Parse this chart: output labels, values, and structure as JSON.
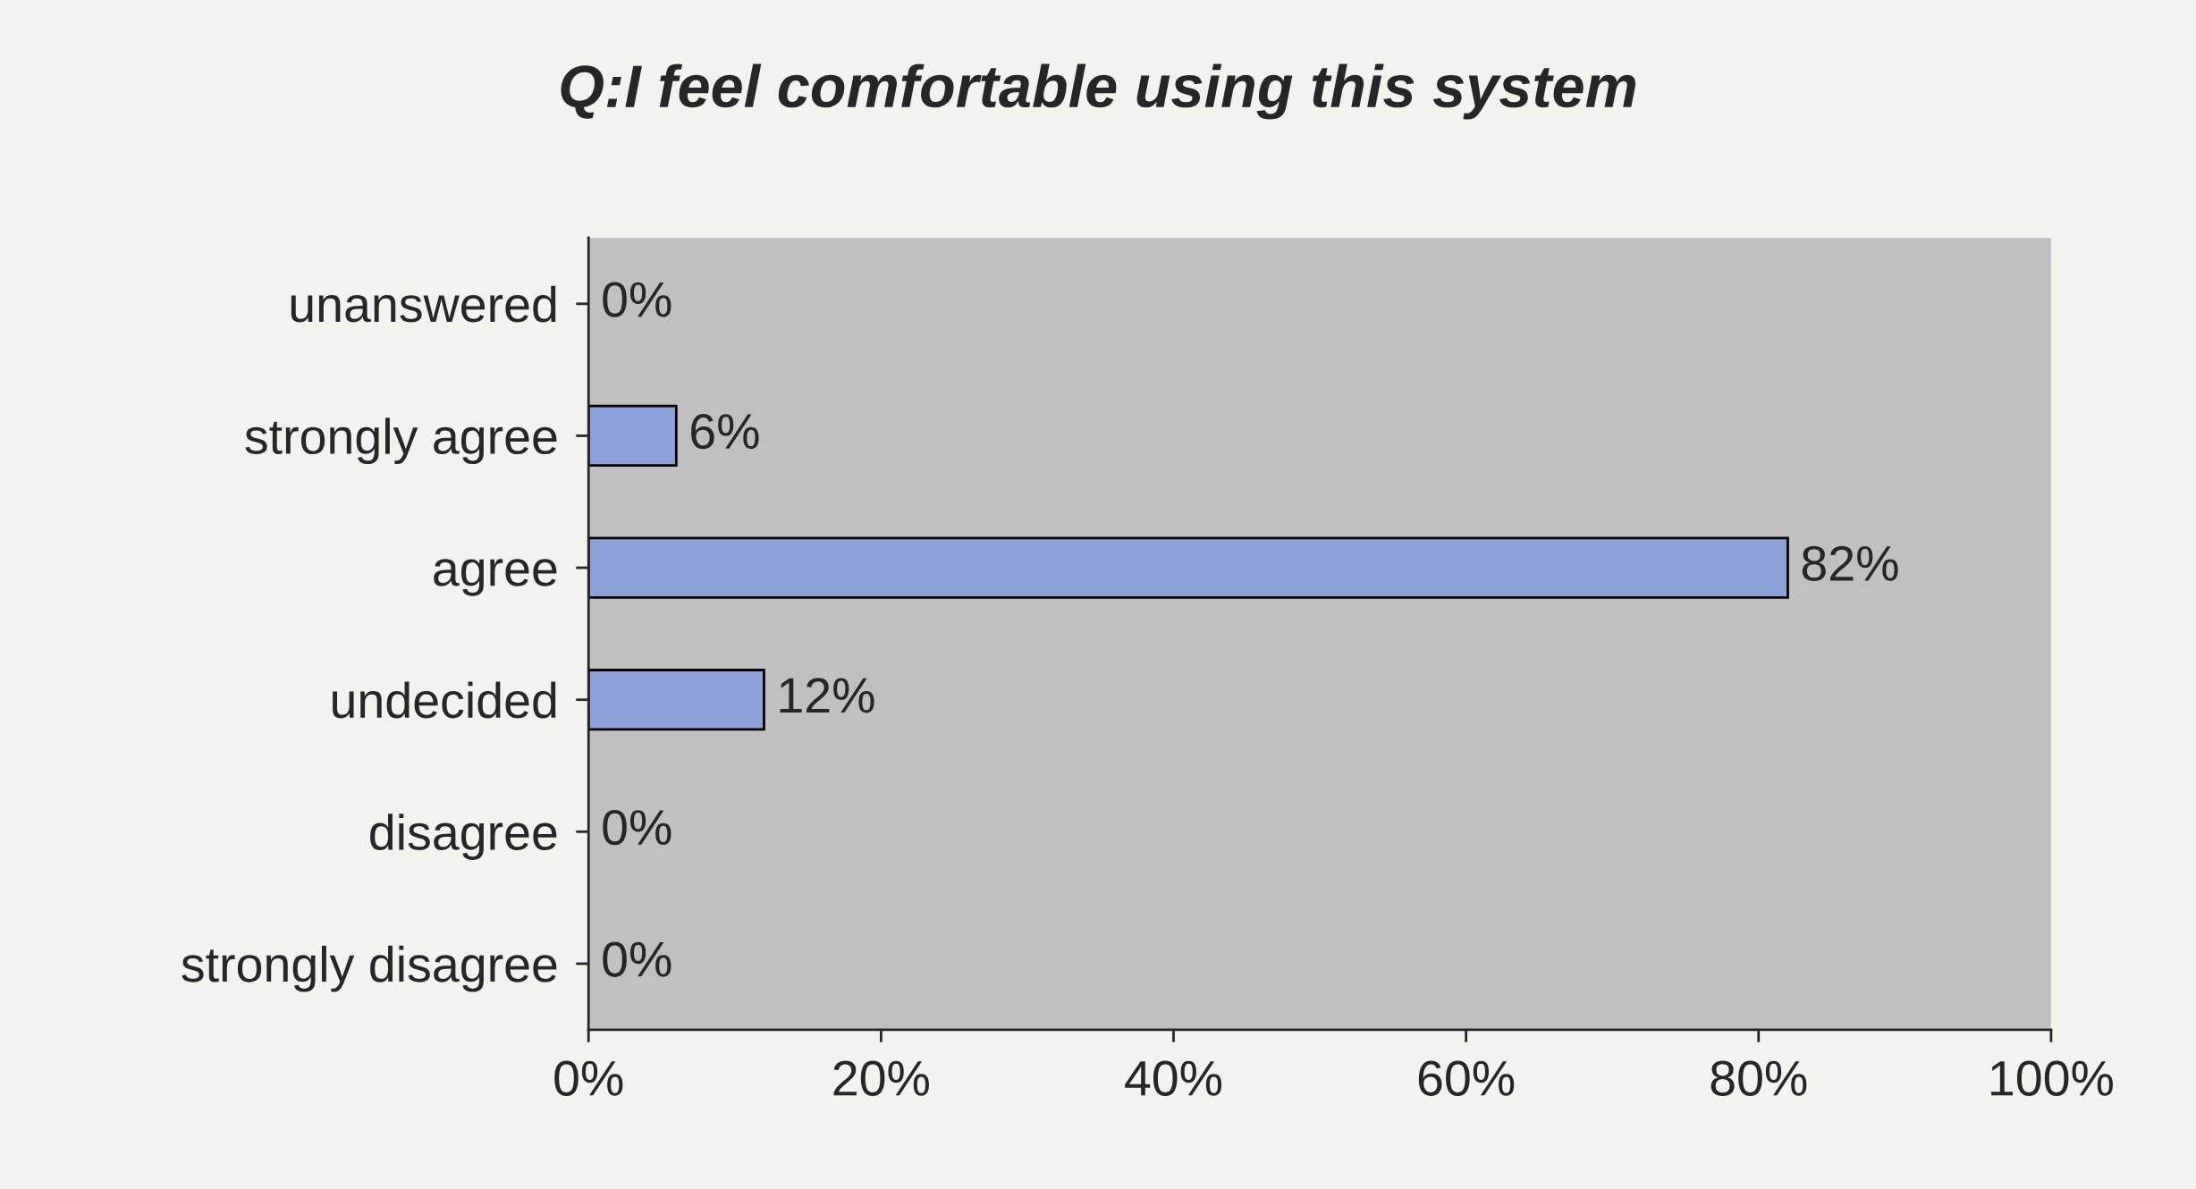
{
  "chart_data": {
    "type": "bar",
    "orientation": "horizontal",
    "title": "Q:I feel comfortable using this system",
    "categories": [
      "unanswered",
      "strongly agree",
      "agree",
      "undecided",
      "disagree",
      "strongly disagree"
    ],
    "values": [
      0,
      6,
      82,
      12,
      0,
      0
    ],
    "value_labels": [
      "0%",
      "6%",
      "82%",
      "12%",
      "0%",
      "0%"
    ],
    "color": "#8ea0d8",
    "xlim": [
      0,
      100
    ],
    "xticks": [
      {
        "value": 0,
        "label": "0%"
      },
      {
        "value": 20,
        "label": "20%"
      },
      {
        "value": 40,
        "label": "40%"
      },
      {
        "value": 60,
        "label": "60%"
      },
      {
        "value": 80,
        "label": "80%"
      },
      {
        "value": 100,
        "label": "100%"
      }
    ],
    "grid": false,
    "legend": false
  }
}
